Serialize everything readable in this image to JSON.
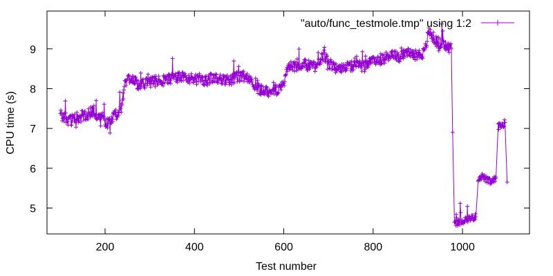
{
  "colors": {
    "series": "#9400d3",
    "axis": "#000000",
    "background": "#ffffff"
  },
  "chart_data": {
    "type": "line",
    "title": "",
    "xlabel": "Test number",
    "ylabel": "CPU time (s)",
    "xlim": [
      70,
      1150
    ],
    "ylim": [
      4.35,
      9.95
    ],
    "xticks": [
      200,
      400,
      600,
      800,
      1000
    ],
    "yticks": [
      5,
      6,
      7,
      8,
      9
    ],
    "grid": false,
    "legend": {
      "position": "top-right",
      "marker": "line-with-plus"
    },
    "series": [
      {
        "name": "\"auto/func_testmole.tmp\" using 1:2",
        "marker": "plus",
        "segments": [
          [
            100,
            7.35
          ],
          [
            120,
            7.2
          ],
          [
            140,
            7.28
          ],
          [
            160,
            7.35
          ],
          [
            175,
            7.45
          ],
          [
            190,
            7.25
          ],
          [
            205,
            7.15
          ],
          [
            220,
            7.3
          ],
          [
            235,
            7.45
          ],
          [
            245,
            8.15
          ],
          [
            260,
            8.25
          ],
          [
            275,
            8.1
          ],
          [
            300,
            8.15
          ],
          [
            325,
            8.2
          ],
          [
            350,
            8.25
          ],
          [
            375,
            8.3
          ],
          [
            400,
            8.25
          ],
          [
            425,
            8.2
          ],
          [
            450,
            8.3
          ],
          [
            475,
            8.2
          ],
          [
            500,
            8.3
          ],
          [
            525,
            8.3
          ],
          [
            540,
            8.0
          ],
          [
            560,
            7.95
          ],
          [
            580,
            7.95
          ],
          [
            600,
            8.1
          ],
          [
            610,
            8.6
          ],
          [
            630,
            8.55
          ],
          [
            650,
            8.6
          ],
          [
            670,
            8.55
          ],
          [
            690,
            8.85
          ],
          [
            705,
            8.6
          ],
          [
            720,
            8.5
          ],
          [
            740,
            8.55
          ],
          [
            760,
            8.6
          ],
          [
            780,
            8.55
          ],
          [
            800,
            8.7
          ],
          [
            820,
            8.75
          ],
          [
            840,
            8.85
          ],
          [
            860,
            8.8
          ],
          [
            880,
            8.9
          ],
          [
            900,
            8.85
          ],
          [
            915,
            8.9
          ],
          [
            925,
            9.45
          ],
          [
            940,
            9.2
          ],
          [
            955,
            9.1
          ],
          [
            965,
            9.05
          ],
          [
            975,
            9.0
          ],
          [
            978,
            6.9
          ],
          [
            982,
            4.65
          ],
          [
            990,
            4.62
          ],
          [
            1000,
            4.68
          ],
          [
            1010,
            4.72
          ],
          [
            1020,
            4.75
          ],
          [
            1030,
            4.78
          ],
          [
            1035,
            5.75
          ],
          [
            1045,
            5.8
          ],
          [
            1055,
            5.7
          ],
          [
            1065,
            5.65
          ],
          [
            1075,
            5.75
          ],
          [
            1080,
            7.05
          ],
          [
            1090,
            7.1
          ],
          [
            1095,
            7.15
          ],
          [
            1100,
            5.65
          ]
        ]
      }
    ]
  }
}
